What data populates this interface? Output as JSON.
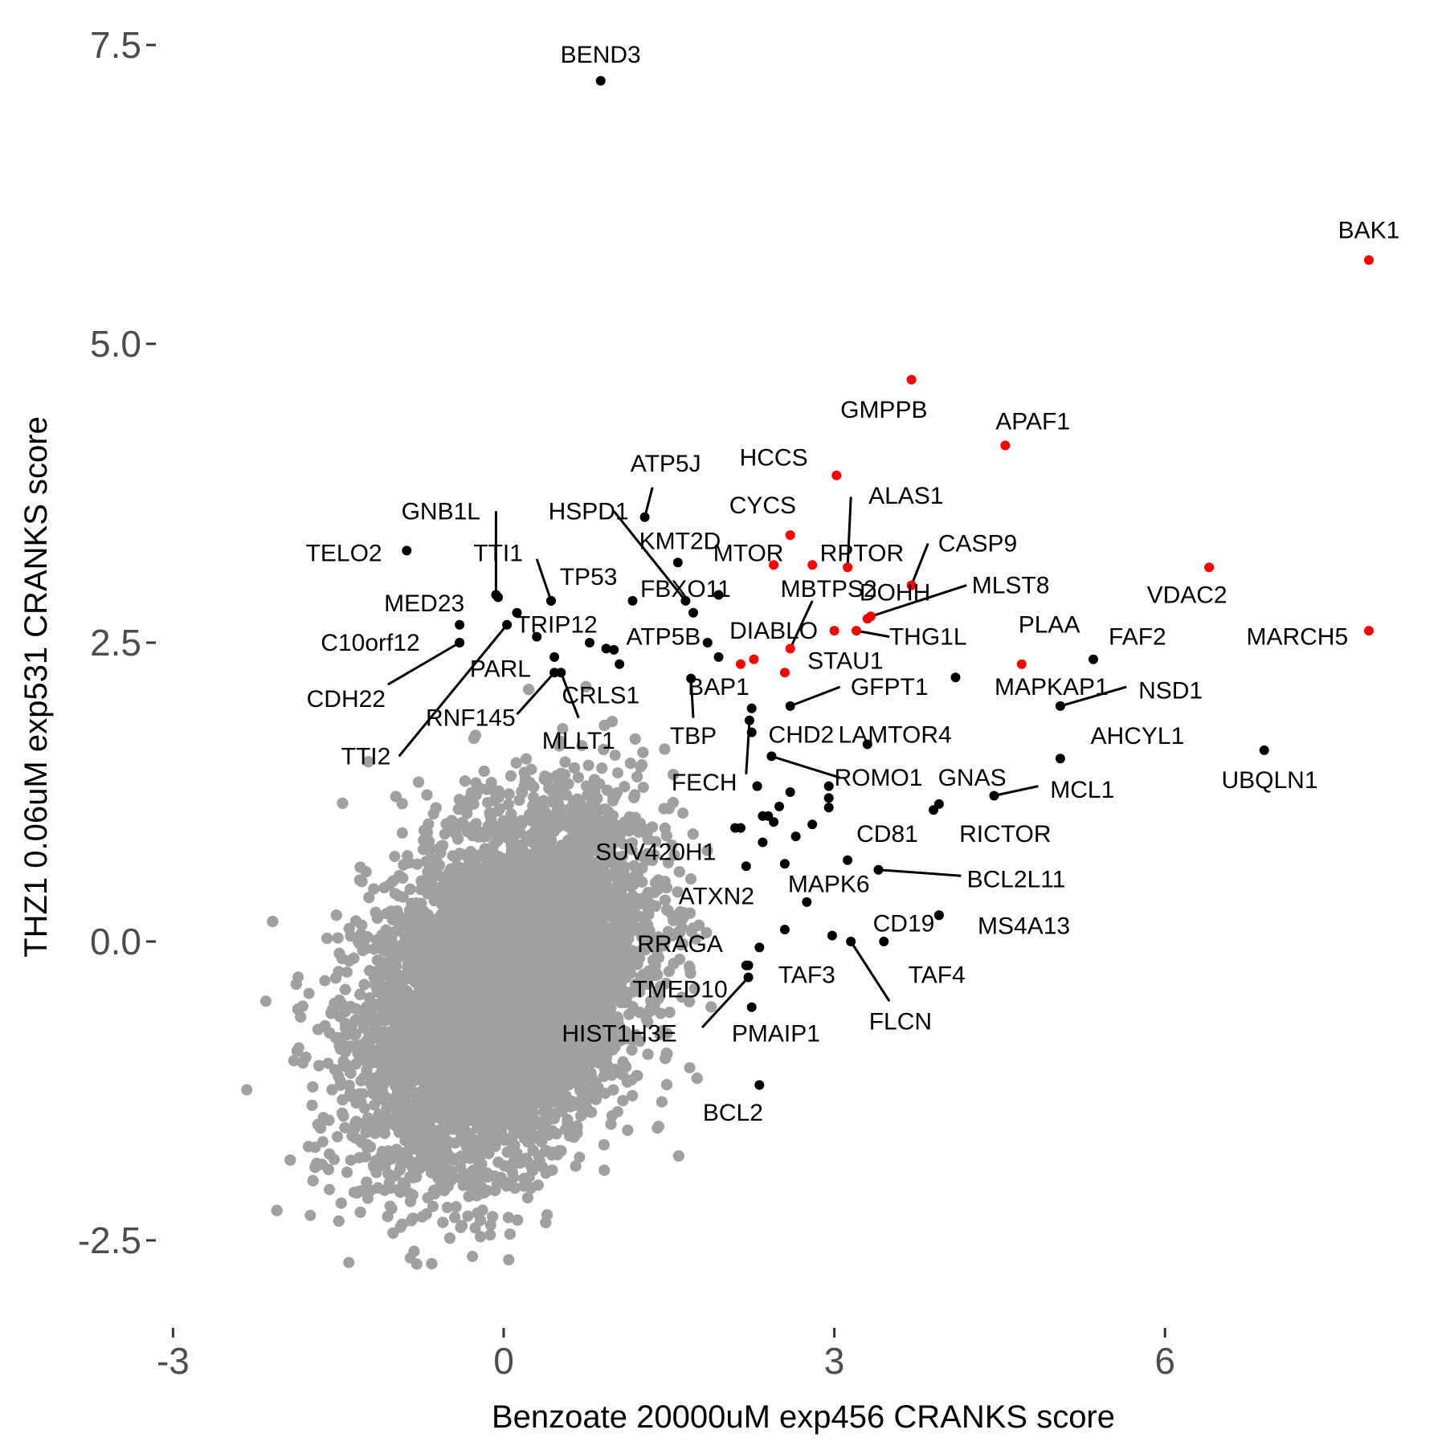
{
  "chart_data": {
    "type": "scatter",
    "xlabel": "Benzoate 20000uM exp456 CRANKS score",
    "ylabel": "THZ1 0.06uM exp531 CRANKS score",
    "xlim": [
      -3.1,
      8.1
    ],
    "ylim": [
      -3.2,
      7.7
    ],
    "x_ticks": [
      -3,
      0,
      3,
      6
    ],
    "x_tick_labels": [
      "-3",
      "0",
      "3",
      "6"
    ],
    "y_ticks": [
      -2.5,
      0,
      2.5,
      5,
      7.5
    ],
    "y_tick_labels": [
      "-2.5",
      "0.0",
      "2.5",
      "5.0",
      "7.5"
    ],
    "grid": false,
    "legend": "none",
    "colors": {
      "background": "#4d4d4d",
      "highlight": "#ff0000",
      "labeled": "#000000",
      "axis_text": "#4d4d4d"
    },
    "background_series": {
      "name": "",
      "color": "#a0a0a0",
      "count": 18000,
      "center": [
        0,
        -0.4
      ],
      "sd": [
        0.62,
        0.72
      ],
      "correlation": 0.35,
      "note_range_x": [
        -2.6,
        1.9
      ],
      "note_range_y": [
        -2.7,
        2.6
      ]
    },
    "points": [
      {
        "label": "BEND3",
        "x": 0.88,
        "y": 7.2,
        "group": "black",
        "anchor": [
          0.88,
          7.42
        ]
      },
      {
        "label": "BAK1",
        "x": 7.85,
        "y": 5.7,
        "group": "red",
        "anchor": [
          7.85,
          5.95
        ]
      },
      {
        "label": "GMPPB",
        "x": 3.7,
        "y": 4.7,
        "group": "red",
        "anchor": [
          3.45,
          4.45
        ]
      },
      {
        "label": "APAF1",
        "x": 4.55,
        "y": 4.15,
        "group": "red",
        "anchor": [
          4.8,
          4.35
        ]
      },
      {
        "label": "HCCS",
        "x": 3.02,
        "y": 3.9,
        "group": "red",
        "anchor": [
          2.45,
          4.05
        ]
      },
      {
        "label": "CYCS",
        "x": 2.6,
        "y": 3.4,
        "group": "red",
        "anchor": [
          2.35,
          3.65
        ]
      },
      {
        "label": "MTOR",
        "x": 2.45,
        "y": 3.15,
        "group": "red",
        "anchor": [
          2.22,
          3.25
        ]
      },
      {
        "label": "RPTOR",
        "x": 2.8,
        "y": 3.15,
        "group": "red",
        "anchor": [
          3.25,
          3.25
        ]
      },
      {
        "label": "ALAS1",
        "x": 3.12,
        "y": 3.13,
        "group": "red",
        "anchor": [
          3.65,
          3.73
        ],
        "leader": [
          3.15,
          3.72
        ]
      },
      {
        "label": "CASP9",
        "x": 3.7,
        "y": 2.98,
        "group": "red",
        "anchor": [
          4.3,
          3.33
        ],
        "leader": [
          3.85,
          3.33
        ]
      },
      {
        "label": "VDAC2",
        "x": 6.4,
        "y": 3.13,
        "group": "red",
        "anchor": [
          6.2,
          2.9
        ]
      },
      {
        "label": "DOHH",
        "x": 3.3,
        "y": 2.7,
        "group": "red",
        "anchor": [
          3.55,
          2.92
        ]
      },
      {
        "label": "MLST8",
        "x": 3.33,
        "y": 2.72,
        "group": "red",
        "anchor": [
          4.6,
          2.98
        ],
        "leader": [
          4.2,
          2.98
        ]
      },
      {
        "label": "MBTPS2",
        "x": 3.0,
        "y": 2.6,
        "group": "red",
        "anchor": [
          2.95,
          2.95
        ]
      },
      {
        "label": "DIABLO",
        "x": 2.6,
        "y": 2.45,
        "group": "red",
        "anchor": [
          2.45,
          2.6
        ],
        "leader": [
          2.8,
          2.85
        ]
      },
      {
        "label": "THG1L",
        "x": 3.2,
        "y": 2.6,
        "group": "red",
        "anchor": [
          3.85,
          2.55
        ],
        "leader": [
          3.5,
          2.55
        ]
      },
      {
        "label": "STAU1",
        "x": 2.55,
        "y": 2.25,
        "group": "red",
        "anchor": [
          3.1,
          2.35
        ]
      },
      {
        "label": "PLAA",
        "x": 4.7,
        "y": 2.32,
        "group": "red",
        "anchor": [
          4.95,
          2.65
        ]
      },
      {
        "label": "MARCH5",
        "x": 7.85,
        "y": 2.6,
        "group": "red",
        "anchor": [
          7.2,
          2.55
        ]
      },
      {
        "label": "",
        "x": 2.15,
        "y": 2.32,
        "group": "red"
      },
      {
        "label": "",
        "x": 2.27,
        "y": 2.36,
        "group": "red"
      },
      {
        "label": "FAF2",
        "x": 5.35,
        "y": 2.36,
        "group": "black",
        "anchor": [
          5.75,
          2.55
        ]
      },
      {
        "label": "NSD1",
        "x": 5.05,
        "y": 1.97,
        "group": "black",
        "anchor": [
          6.05,
          2.1
        ],
        "leader": [
          5.65,
          2.13
        ]
      },
      {
        "label": "MAPKAP1",
        "x": 4.1,
        "y": 2.21,
        "group": "black",
        "anchor": [
          4.97,
          2.13
        ]
      },
      {
        "label": "AHCYL1",
        "x": 5.05,
        "y": 1.53,
        "group": "black",
        "anchor": [
          5.75,
          1.72
        ]
      },
      {
        "label": "UBQLN1",
        "x": 6.9,
        "y": 1.6,
        "group": "black",
        "anchor": [
          6.95,
          1.35
        ]
      },
      {
        "label": "MCL1",
        "x": 4.45,
        "y": 1.22,
        "group": "black",
        "anchor": [
          5.25,
          1.27
        ],
        "leader": [
          4.85,
          1.3
        ]
      },
      {
        "label": "GNAS",
        "x": 3.95,
        "y": 1.15,
        "group": "black",
        "anchor": [
          4.25,
          1.37
        ]
      },
      {
        "label": "RICTOR",
        "x": 3.9,
        "y": 1.1,
        "group": "black",
        "anchor": [
          4.55,
          0.9
        ]
      },
      {
        "label": "LAMTOR4",
        "x": 3.3,
        "y": 1.65,
        "group": "black",
        "anchor": [
          3.55,
          1.73
        ]
      },
      {
        "label": "CHD2",
        "x": 2.25,
        "y": 1.75,
        "group": "black",
        "anchor": [
          2.7,
          1.73
        ]
      },
      {
        "label": "GFPT1",
        "x": 2.6,
        "y": 1.97,
        "group": "black",
        "anchor": [
          3.5,
          2.13
        ],
        "leader": [
          3.05,
          2.13
        ]
      },
      {
        "label": "ROMO1",
        "x": 2.43,
        "y": 1.55,
        "group": "black",
        "anchor": [
          3.4,
          1.37
        ],
        "leader": [
          3.05,
          1.37
        ]
      },
      {
        "label": "FECH",
        "x": 2.23,
        "y": 1.85,
        "group": "black",
        "anchor": [
          1.82,
          1.33
        ],
        "leader": [
          2.2,
          1.4
        ]
      },
      {
        "label": "BAP1",
        "x": 1.95,
        "y": 2.38,
        "group": "black",
        "anchor": [
          1.95,
          2.13
        ]
      },
      {
        "label": "TBP",
        "x": 1.7,
        "y": 2.2,
        "group": "black",
        "anchor": [
          1.72,
          1.72
        ],
        "leader": [
          1.72,
          1.87
        ]
      },
      {
        "label": "ATP5B",
        "x": 1.85,
        "y": 2.5,
        "group": "black",
        "anchor": [
          1.45,
          2.55
        ]
      },
      {
        "label": "FBXO11",
        "x": 1.72,
        "y": 2.75,
        "group": "black",
        "anchor": [
          1.65,
          2.95
        ]
      },
      {
        "label": "KMT2D",
        "x": 1.58,
        "y": 3.17,
        "group": "black",
        "anchor": [
          1.6,
          3.35
        ]
      },
      {
        "label": "HSPD1",
        "x": 1.65,
        "y": 2.85,
        "group": "black",
        "anchor": [
          0.77,
          3.6
        ],
        "leader": [
          1.0,
          3.6
        ]
      },
      {
        "label": "ATP5J",
        "x": 1.28,
        "y": 3.55,
        "group": "black",
        "anchor": [
          1.47,
          4.0
        ],
        "leader": [
          1.35,
          3.8
        ]
      },
      {
        "label": "",
        "x": 1.95,
        "y": 2.9,
        "group": "black"
      },
      {
        "label": "",
        "x": 1.17,
        "y": 2.85,
        "group": "black"
      },
      {
        "label": "TP53",
        "x": 0.43,
        "y": 2.85,
        "group": "black",
        "anchor": [
          0.77,
          3.05
        ]
      },
      {
        "label": "TTI1",
        "x": 0.43,
        "y": 2.85,
        "group": "black",
        "anchor": [
          -0.05,
          3.25
        ],
        "leader": [
          0.3,
          3.2
        ]
      },
      {
        "label": "GNB1L",
        "x": -0.07,
        "y": 2.9,
        "group": "black",
        "anchor": [
          -0.57,
          3.6
        ],
        "leader": [
          -0.07,
          3.6
        ]
      },
      {
        "label": "TELO2",
        "x": -0.88,
        "y": 3.27,
        "group": "black",
        "anchor": [
          -1.45,
          3.25
        ]
      },
      {
        "label": "MED23",
        "x": -0.05,
        "y": 2.88,
        "group": "black",
        "anchor": [
          -0.72,
          2.83
        ]
      },
      {
        "label": "TRIP12",
        "x": 0.12,
        "y": 2.75,
        "group": "black",
        "anchor": [
          0.48,
          2.65
        ]
      },
      {
        "label": "C10orf12",
        "x": -0.4,
        "y": 2.65,
        "group": "black",
        "anchor": [
          -1.21,
          2.5
        ]
      },
      {
        "label": "",
        "x": -0.4,
        "y": 2.5,
        "group": "black"
      },
      {
        "label": "CDH22",
        "x": -0.4,
        "y": 2.5,
        "group": "black",
        "anchor": [
          -1.43,
          2.03
        ],
        "leader": [
          -1.05,
          2.15
        ]
      },
      {
        "label": "TTI2",
        "x": 0.03,
        "y": 2.65,
        "group": "black",
        "anchor": [
          -1.25,
          1.55
        ],
        "leader": [
          -0.95,
          1.55
        ]
      },
      {
        "label": "PARL",
        "x": 0.3,
        "y": 2.55,
        "group": "black",
        "anchor": [
          -0.03,
          2.28
        ]
      },
      {
        "label": "RNF145",
        "x": 0.46,
        "y": 2.25,
        "group": "black",
        "anchor": [
          -0.3,
          1.87
        ],
        "leader": [
          0.12,
          1.9
        ]
      },
      {
        "label": "CRLS1",
        "x": 0.46,
        "y": 2.38,
        "group": "black",
        "anchor": [
          0.88,
          2.06
        ]
      },
      {
        "label": "MLLT1",
        "x": 0.52,
        "y": 2.25,
        "group": "black",
        "anchor": [
          0.68,
          1.68
        ],
        "leader": [
          0.68,
          1.87
        ]
      },
      {
        "label": "",
        "x": 0.78,
        "y": 2.5,
        "group": "black"
      },
      {
        "label": "",
        "x": 0.93,
        "y": 2.45,
        "group": "black"
      },
      {
        "label": "",
        "x": 1.0,
        "y": 2.44,
        "group": "black"
      },
      {
        "label": "",
        "x": 1.05,
        "y": 2.32,
        "group": "black"
      },
      {
        "label": "SUV420H1",
        "x": 2.1,
        "y": 0.95,
        "group": "black",
        "anchor": [
          1.38,
          0.75
        ]
      },
      {
        "label": "ATXN2",
        "x": 2.2,
        "y": 0.63,
        "group": "black",
        "anchor": [
          1.93,
          0.38
        ]
      },
      {
        "label": "MAPK6",
        "x": 2.55,
        "y": 0.65,
        "group": "black",
        "anchor": [
          2.95,
          0.48
        ]
      },
      {
        "label": "CD81",
        "x": 3.12,
        "y": 0.68,
        "group": "black",
        "anchor": [
          3.48,
          0.9
        ]
      },
      {
        "label": "BCL2L11",
        "x": 3.4,
        "y": 0.6,
        "group": "black",
        "anchor": [
          4.65,
          0.52
        ],
        "leader": [
          4.15,
          0.55
        ]
      },
      {
        "label": "CD19",
        "x": 3.95,
        "y": 0.22,
        "group": "black",
        "anchor": [
          3.63,
          0.15
        ]
      },
      {
        "label": "MS4A13",
        "x": 3.95,
        "y": 0.22,
        "group": "black",
        "anchor": [
          4.72,
          0.13
        ]
      },
      {
        "label": "RRAGA",
        "x": 2.32,
        "y": -0.05,
        "group": "black",
        "anchor": [
          1.6,
          -0.02
        ]
      },
      {
        "label": "TAF3",
        "x": 2.98,
        "y": 0.05,
        "group": "black",
        "anchor": [
          2.75,
          -0.28
        ]
      },
      {
        "label": "TAF4",
        "x": 3.45,
        "y": 0.0,
        "group": "black",
        "anchor": [
          3.93,
          -0.28
        ]
      },
      {
        "label": "FLCN",
        "x": 3.15,
        "y": 0.0,
        "group": "black",
        "anchor": [
          3.6,
          -0.67
        ],
        "leader": [
          3.5,
          -0.5
        ]
      },
      {
        "label": "TMED10",
        "x": 2.22,
        "y": -0.2,
        "group": "black",
        "anchor": [
          1.6,
          -0.4
        ]
      },
      {
        "label": "HIST1H3E",
        "x": 2.22,
        "y": -0.3,
        "group": "black",
        "anchor": [
          1.05,
          -0.77
        ],
        "leader": [
          1.8,
          -0.72
        ]
      },
      {
        "label": "PMAIP1",
        "x": 2.25,
        "y": -0.55,
        "group": "black",
        "anchor": [
          2.47,
          -0.77
        ]
      },
      {
        "label": "BCL2",
        "x": 2.32,
        "y": -1.2,
        "group": "black",
        "anchor": [
          2.08,
          -1.43
        ]
      },
      {
        "label": "",
        "x": 2.25,
        "y": 1.95,
        "group": "black"
      },
      {
        "label": "",
        "x": 2.3,
        "y": 1.3,
        "group": "black"
      },
      {
        "label": "",
        "x": 2.3,
        "y": 1.3,
        "group": "black"
      },
      {
        "label": "",
        "x": 2.6,
        "y": 1.25,
        "group": "black"
      },
      {
        "label": "",
        "x": 2.95,
        "y": 1.3,
        "group": "black"
      },
      {
        "label": "",
        "x": 2.95,
        "y": 1.2,
        "group": "black"
      },
      {
        "label": "",
        "x": 2.95,
        "y": 1.12,
        "group": "black"
      },
      {
        "label": "",
        "x": 2.5,
        "y": 1.13,
        "group": "black"
      },
      {
        "label": "",
        "x": 2.4,
        "y": 1.05,
        "group": "black"
      },
      {
        "label": "",
        "x": 2.35,
        "y": 1.05,
        "group": "black"
      },
      {
        "label": "",
        "x": 2.45,
        "y": 1.0,
        "group": "black"
      },
      {
        "label": "",
        "x": 2.8,
        "y": 0.98,
        "group": "black"
      },
      {
        "label": "",
        "x": 2.15,
        "y": 0.95,
        "group": "black"
      },
      {
        "label": "",
        "x": 2.65,
        "y": 0.88,
        "group": "black"
      },
      {
        "label": "",
        "x": 2.35,
        "y": 0.83,
        "group": "black"
      },
      {
        "label": "",
        "x": 2.75,
        "y": 0.33,
        "group": "black"
      },
      {
        "label": "",
        "x": 2.55,
        "y": 0.1,
        "group": "black"
      },
      {
        "label": "",
        "x": 2.2,
        "y": -0.2,
        "group": "black"
      }
    ]
  }
}
